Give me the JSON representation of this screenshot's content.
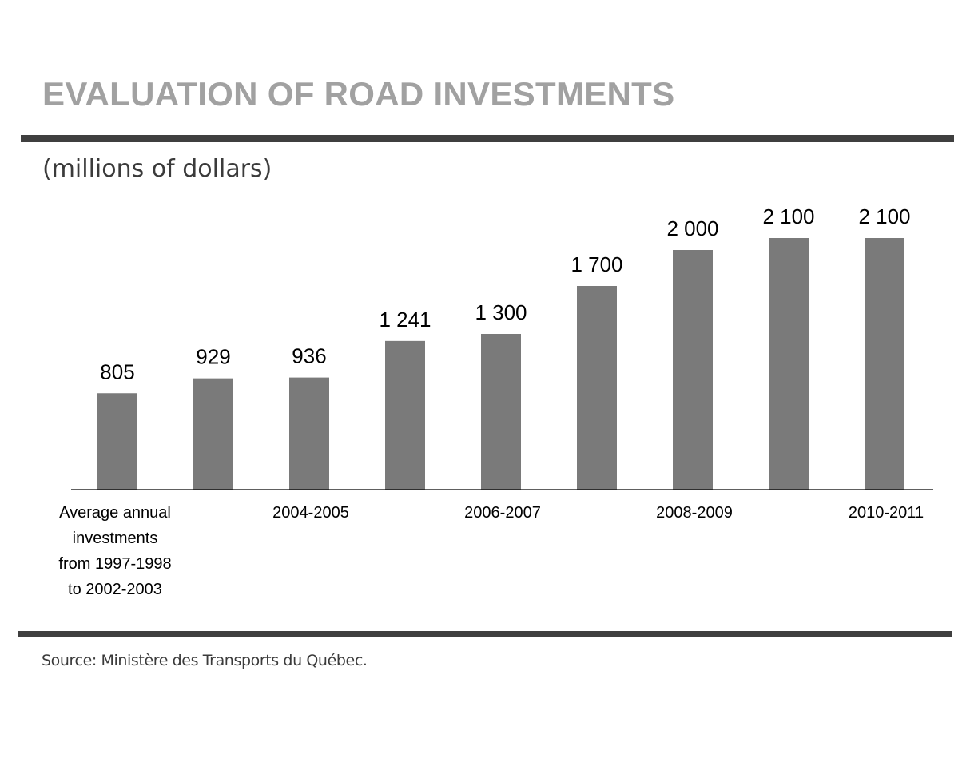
{
  "chart_data": {
    "type": "bar",
    "title": "EVALUATION OF ROAD INVESTMENTS",
    "subtitle": "(millions of dollars)",
    "categories": [
      [
        "Average annual",
        "investments",
        "from 1997-1998",
        "to 2002-2003"
      ],
      "",
      "2004-2005",
      "",
      "2006-2007",
      "",
      "2008-2009",
      "",
      "2010-2011"
    ],
    "values": [
      805,
      929,
      936,
      1241,
      1300,
      1700,
      2000,
      2100,
      2100
    ],
    "value_labels": [
      "805",
      "929",
      "936",
      "1 241",
      "1 300",
      "1 700",
      "2 000",
      "2 100",
      "2 100"
    ],
    "xlabel": "",
    "ylabel": "",
    "ylim": [
      0,
      2100
    ],
    "grid": false,
    "legend": "none",
    "bar_color": "#7a7a7a"
  },
  "source": "Source: Ministère des Transports du Québec.",
  "colors": {
    "title": "#a1a1a1",
    "rules": "#3f3f3f",
    "text": "#3b3b3b"
  }
}
